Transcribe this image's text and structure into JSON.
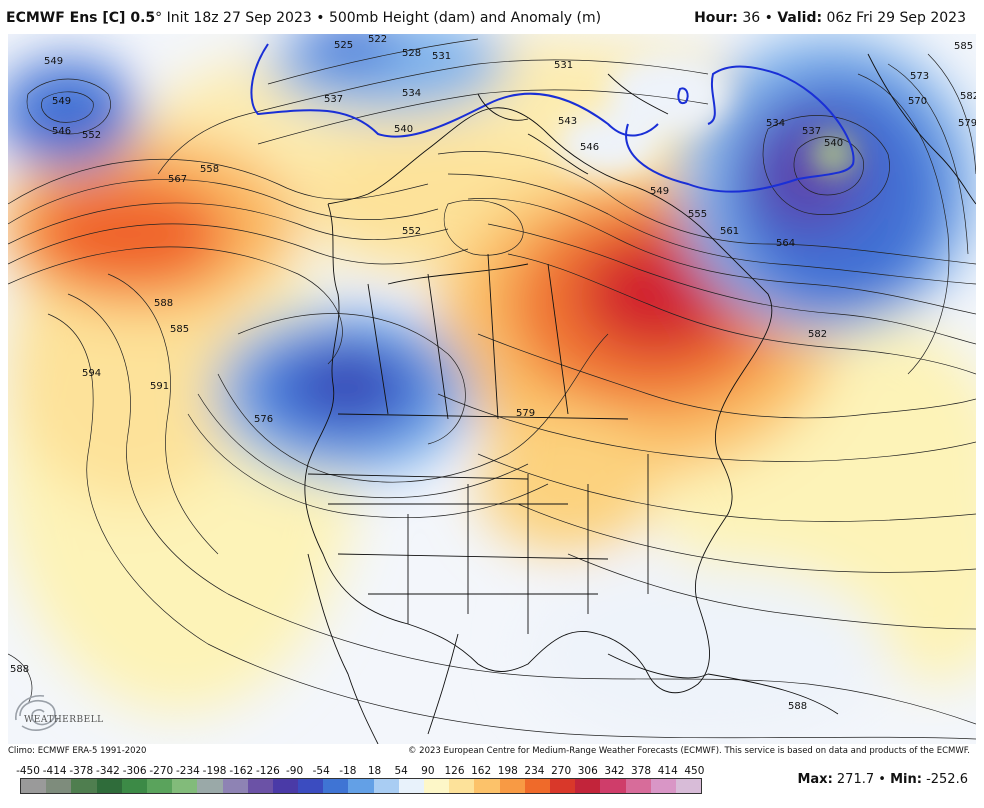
{
  "header": {
    "model": "ECMWF Ens [C] 0.5",
    "degree": "°",
    "init": "Init 18z 27 Sep 2023",
    "bullet": "•",
    "product": "500mb Height (dam) and Anomaly (m)",
    "hour_label": "Hour:",
    "hour_value": "36",
    "valid_label": "Valid:",
    "valid_value": "06z Fri 29 Sep 2023"
  },
  "contour_labels": [
    "549",
    "546",
    "552",
    "525",
    "522",
    "528",
    "531",
    "537",
    "534",
    "540",
    "543",
    "546",
    "531",
    "534",
    "537",
    "540",
    "573",
    "570",
    "585",
    "582",
    "579",
    "567",
    "558",
    "552",
    "549",
    "555",
    "561",
    "564",
    "582",
    "588",
    "585",
    "594",
    "591",
    "576",
    "579",
    "588",
    "588"
  ],
  "logo": {
    "text": "WEATHERBELL",
    "icon": "swirl-logo-icon"
  },
  "footer": {
    "climo": "Climo: ECMWF ERA-5 1991-2020",
    "credit": "© 2023 European Centre for Medium-Range Weather Forecasts (ECMWF). This service is based on data and products of the ECMWF.",
    "max_label": "Max:",
    "max_value": "271.7",
    "min_label": "Min:",
    "min_value": "-252.6"
  },
  "colorbar": {
    "ticks": [
      "-450",
      "-414",
      "-378",
      "-342",
      "-306",
      "-270",
      "-234",
      "-198",
      "-162",
      "-126",
      "-90",
      "-54",
      "-18",
      "18",
      "54",
      "90",
      "126",
      "162",
      "198",
      "234",
      "270",
      "306",
      "342",
      "378",
      "414",
      "450"
    ],
    "colors": [
      "#9a9a9a",
      "#7e8c7c",
      "#4f7e4f",
      "#2f6c3a",
      "#3c8a46",
      "#5aa35c",
      "#82bb7a",
      "#9aa9a8",
      "#8e83b4",
      "#6b52a6",
      "#4a3aa7",
      "#3b4cc0",
      "#3f74d4",
      "#63a0e6",
      "#a9cdf3",
      "#e8f2fb",
      "#fdf7c8",
      "#fde29a",
      "#fcc26a",
      "#f89a44",
      "#ef6a2a",
      "#d9382a",
      "#c2243a",
      "#cf3d6a",
      "#d76c9a",
      "#d996c6",
      "#d8bcd8"
    ]
  }
}
